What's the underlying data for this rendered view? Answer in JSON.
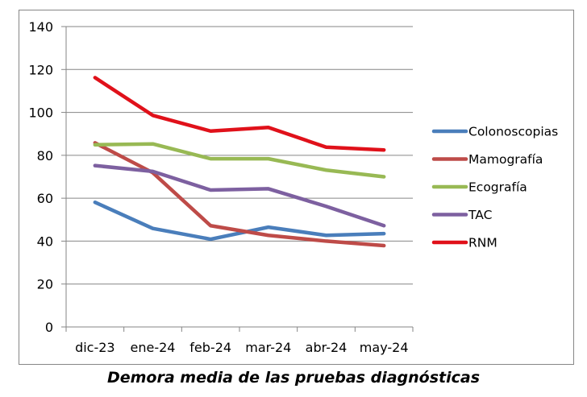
{
  "chart_data": {
    "type": "line",
    "title": "Demora media de las pruebas diagnósticas",
    "xlabel": "",
    "ylabel": "",
    "categories": [
      "dic-23",
      "ene-24",
      "feb-24",
      "mar-24",
      "abr-24",
      "may-24"
    ],
    "ylim": [
      0,
      140
    ],
    "yticks": [
      0,
      20,
      40,
      60,
      80,
      100,
      120,
      140
    ],
    "grid": true,
    "legend_position": "right",
    "series": [
      {
        "name": "Colonoscopias",
        "color": "#4a7ebb",
        "values": [
          58.1,
          45.9,
          40.9,
          46.5,
          42.7,
          43.5
        ]
      },
      {
        "name": "Mamografía",
        "color": "#be4b48",
        "values": [
          85.8,
          71.9,
          47.2,
          42.7,
          40.0,
          37.9
        ]
      },
      {
        "name": "Ecografía",
        "color": "#98b954",
        "values": [
          84.9,
          85.3,
          78.4,
          78.4,
          73.1,
          70.0
        ]
      },
      {
        "name": "TAC",
        "color": "#7d60a0",
        "values": [
          75.2,
          72.5,
          63.8,
          64.4,
          56.2,
          47.2
        ]
      },
      {
        "name": "RNM",
        "color": "#e0111a",
        "values": [
          116.2,
          98.6,
          91.3,
          93.0,
          83.8,
          82.5
        ]
      }
    ]
  }
}
